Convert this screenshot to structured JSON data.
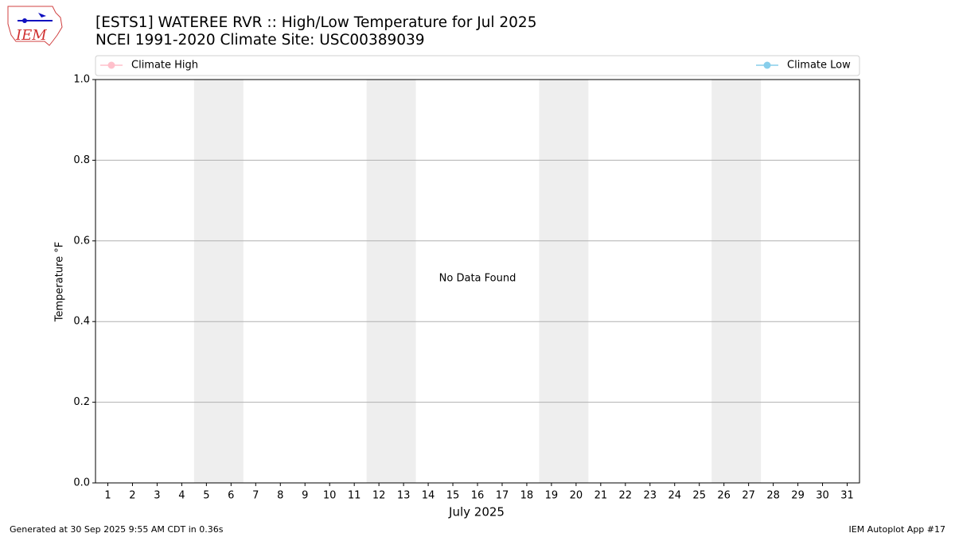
{
  "chart_data": {
    "type": "line",
    "title": "[ESTS1] WATEREE RVR :: High/Low Temperature for Jul 2025",
    "subtitle": "NCEI 1991-2020 Climate Site: USC00389039",
    "logo_text": "IEM",
    "xlabel": "July 2025",
    "ylabel": "Temperature °F",
    "annotation": "No Data Found",
    "footer_left": "Generated at 30 Sep 2025 9:55 AM CDT in 0.36s",
    "footer_right": "IEM Autoplot App #17",
    "x": [
      1,
      2,
      3,
      4,
      5,
      6,
      7,
      8,
      9,
      10,
      11,
      12,
      13,
      14,
      15,
      16,
      17,
      18,
      19,
      20,
      21,
      22,
      23,
      24,
      25,
      26,
      27,
      28,
      29,
      30,
      31
    ],
    "xlim": [
      0.5,
      31.5
    ],
    "xticks": [
      1,
      2,
      3,
      4,
      5,
      6,
      7,
      8,
      9,
      10,
      11,
      12,
      13,
      14,
      15,
      16,
      17,
      18,
      19,
      20,
      21,
      22,
      23,
      24,
      25,
      26,
      27,
      28,
      29,
      30,
      31
    ],
    "ylim": [
      0,
      1
    ],
    "yticks": [
      {
        "value": 0,
        "label": "0.0"
      },
      {
        "value": 0.2,
        "label": "0.2"
      },
      {
        "value": 0.4,
        "label": "0.4"
      },
      {
        "value": 0.6,
        "label": "0.6"
      },
      {
        "value": 0.8,
        "label": "0.8"
      },
      {
        "value": 1,
        "label": "1.0"
      }
    ],
    "grid": true,
    "shaded_days": [
      [
        5,
        6
      ],
      [
        12,
        13
      ],
      [
        19,
        20
      ],
      [
        26,
        27
      ]
    ],
    "shade_color": "#eeeeee",
    "series": [
      {
        "name": "Climate High",
        "color": "#ffc0cb",
        "legend": "left",
        "values": [
          null,
          null,
          null,
          null,
          null,
          null,
          null,
          null,
          null,
          null,
          null,
          null,
          null,
          null,
          null,
          null,
          null,
          null,
          null,
          null,
          null,
          null,
          null,
          null,
          null,
          null,
          null,
          null,
          null,
          null,
          null
        ]
      },
      {
        "name": "Climate Low",
        "color": "#87ceeb",
        "legend": "right",
        "values": [
          null,
          null,
          null,
          null,
          null,
          null,
          null,
          null,
          null,
          null,
          null,
          null,
          null,
          null,
          null,
          null,
          null,
          null,
          null,
          null,
          null,
          null,
          null,
          null,
          null,
          null,
          null,
          null,
          null,
          null,
          null
        ]
      }
    ]
  }
}
